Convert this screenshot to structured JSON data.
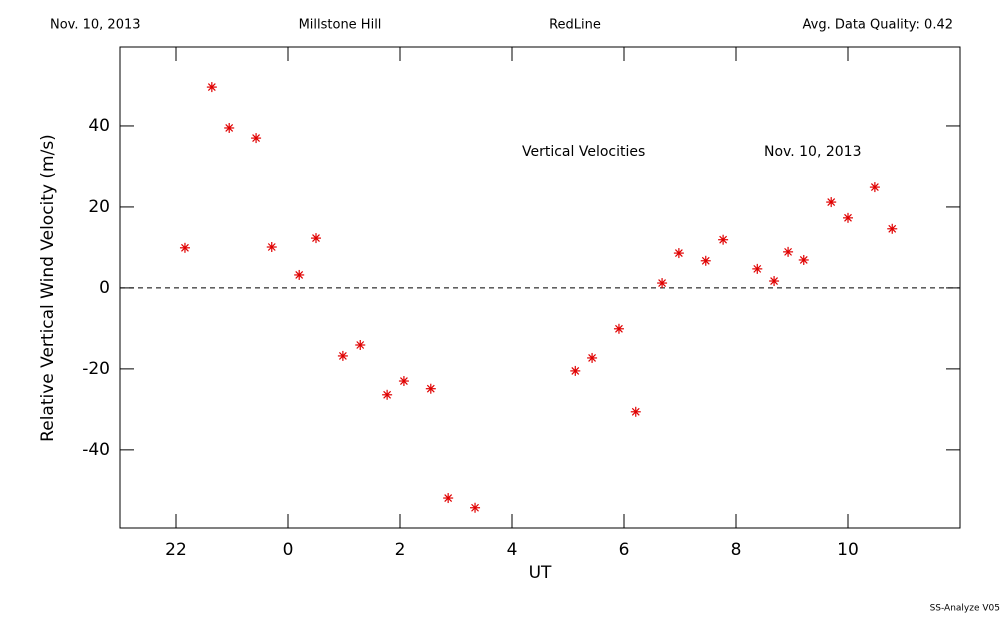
{
  "chart_data": {
    "type": "scatter",
    "header": [
      "Nov. 10, 2013",
      "Millstone Hill",
      "RedLine",
      "Avg. Data Quality: 0.42"
    ],
    "annotations": [
      "Vertical Velocities",
      "Nov. 10, 2013"
    ],
    "xlabel": "UT",
    "ylabel": "Relative Vertical Wind Velocity (m/s)",
    "footer": "SS-Analyze V05",
    "xlim": [
      21,
      36
    ],
    "ylim": [
      -59.3,
      59.5
    ],
    "xticks": [
      22,
      {
        "value": 24,
        "label": "0"
      },
      {
        "value": 26,
        "label": "2"
      },
      {
        "value": 28,
        "label": "4"
      },
      {
        "value": 30,
        "label": "6"
      },
      {
        "value": 32,
        "label": "8"
      },
      {
        "value": 34,
        "label": "10"
      }
    ],
    "yticks": [
      -40,
      -20,
      0,
      20,
      40
    ],
    "hline": 0,
    "series": [
      {
        "color": "#e00000",
        "x": [
          22.16,
          22.64,
          22.95,
          23.43,
          23.71,
          24.2,
          24.5,
          24.98,
          25.29,
          25.77,
          26.07,
          26.55,
          26.86,
          27.34,
          29.13,
          29.43,
          29.91,
          30.21,
          30.68,
          30.98,
          31.46,
          31.77,
          32.38,
          32.68,
          32.93,
          33.21,
          33.7,
          34.0,
          34.48,
          34.79
        ],
        "values": [
          9.9,
          49.6,
          39.5,
          37.0,
          10.1,
          3.2,
          12.3,
          -16.8,
          -14.1,
          -26.4,
          -23.0,
          -24.9,
          -51.9,
          -54.3,
          -20.5,
          -17.3,
          -10.1,
          -30.6,
          1.2,
          8.6,
          6.7,
          11.9,
          4.7,
          1.7,
          8.9,
          6.9,
          21.2,
          17.3,
          24.9,
          14.6
        ]
      }
    ]
  }
}
